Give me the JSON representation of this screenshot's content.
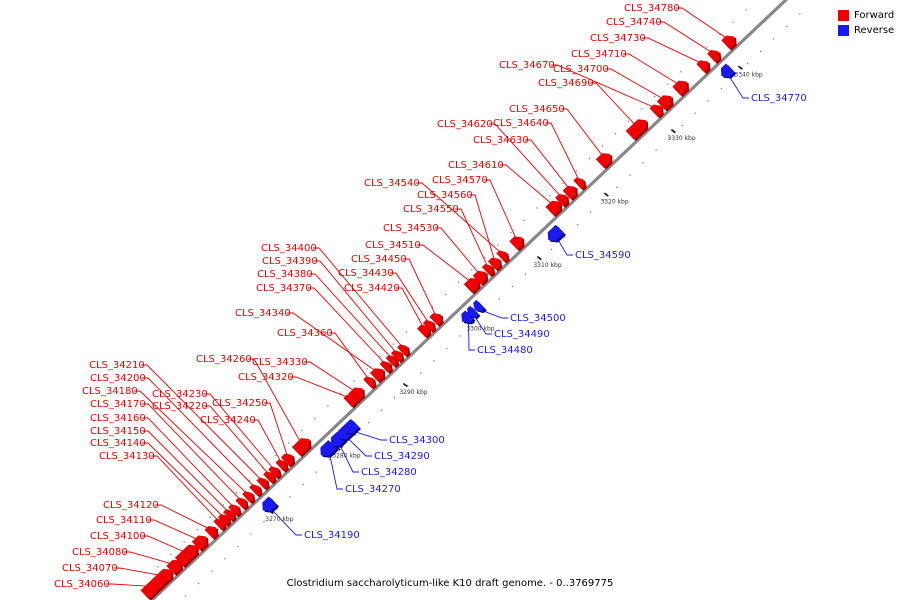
{
  "colors": {
    "forward": "#ee0000",
    "forward_dark": "#9a0000",
    "reverse": "#1a1aee",
    "reverse_dark": "#00008a",
    "backbone": "#888888"
  },
  "legend": {
    "forward_label": "Forward",
    "reverse_label": "Reverse"
  },
  "caption": "Clostridium saccharolyticum-like K10 draft genome. - 0..3769775",
  "ticks": [
    {
      "label": "3270 kbp",
      "pos_kbp": 3270
    },
    {
      "label": "3280 kbp",
      "pos_kbp": 3280
    },
    {
      "label": "3290 kbp",
      "pos_kbp": 3290
    },
    {
      "label": "3300 kbp",
      "pos_kbp": 3300
    },
    {
      "label": "3310 kbp",
      "pos_kbp": 3310
    },
    {
      "label": "3320 kbp",
      "pos_kbp": 3320
    },
    {
      "label": "3330 kbp",
      "pos_kbp": 3330
    },
    {
      "label": "3340 kbp",
      "pos_kbp": 3340
    }
  ],
  "forward_genes": [
    "CLS_34060",
    "CLS_34070",
    "CLS_34080",
    "CLS_34100",
    "CLS_34110",
    "CLS_34120",
    "CLS_34130",
    "CLS_34140",
    "CLS_34150",
    "CLS_34160",
    "CLS_34170",
    "CLS_34180",
    "CLS_34200",
    "CLS_34210",
    "CLS_34220",
    "CLS_34230",
    "CLS_34240",
    "CLS_34250",
    "CLS_34260",
    "CLS_34320",
    "CLS_34330",
    "CLS_34360",
    "CLS_34340",
    "CLS_34370",
    "CLS_34380",
    "CLS_34390",
    "CLS_34400",
    "CLS_34420",
    "CLS_34430",
    "CLS_34450",
    "CLS_34510",
    "CLS_34530",
    "CLS_34550",
    "CLS_34560",
    "CLS_34540",
    "CLS_34570",
    "CLS_34610",
    "CLS_34630",
    "CLS_34620",
    "CLS_34640",
    "CLS_34650",
    "CLS_34690",
    "CLS_34670",
    "CLS_34700",
    "CLS_34710",
    "CLS_34730",
    "CLS_34740",
    "CLS_34780"
  ],
  "reverse_genes": [
    "CLS_34190",
    "CLS_34270",
    "CLS_34280",
    "CLS_34290",
    "CLS_34300",
    "CLS_34480",
    "CLS_34490",
    "CLS_34500",
    "CLS_34590",
    "CLS_34770"
  ]
}
